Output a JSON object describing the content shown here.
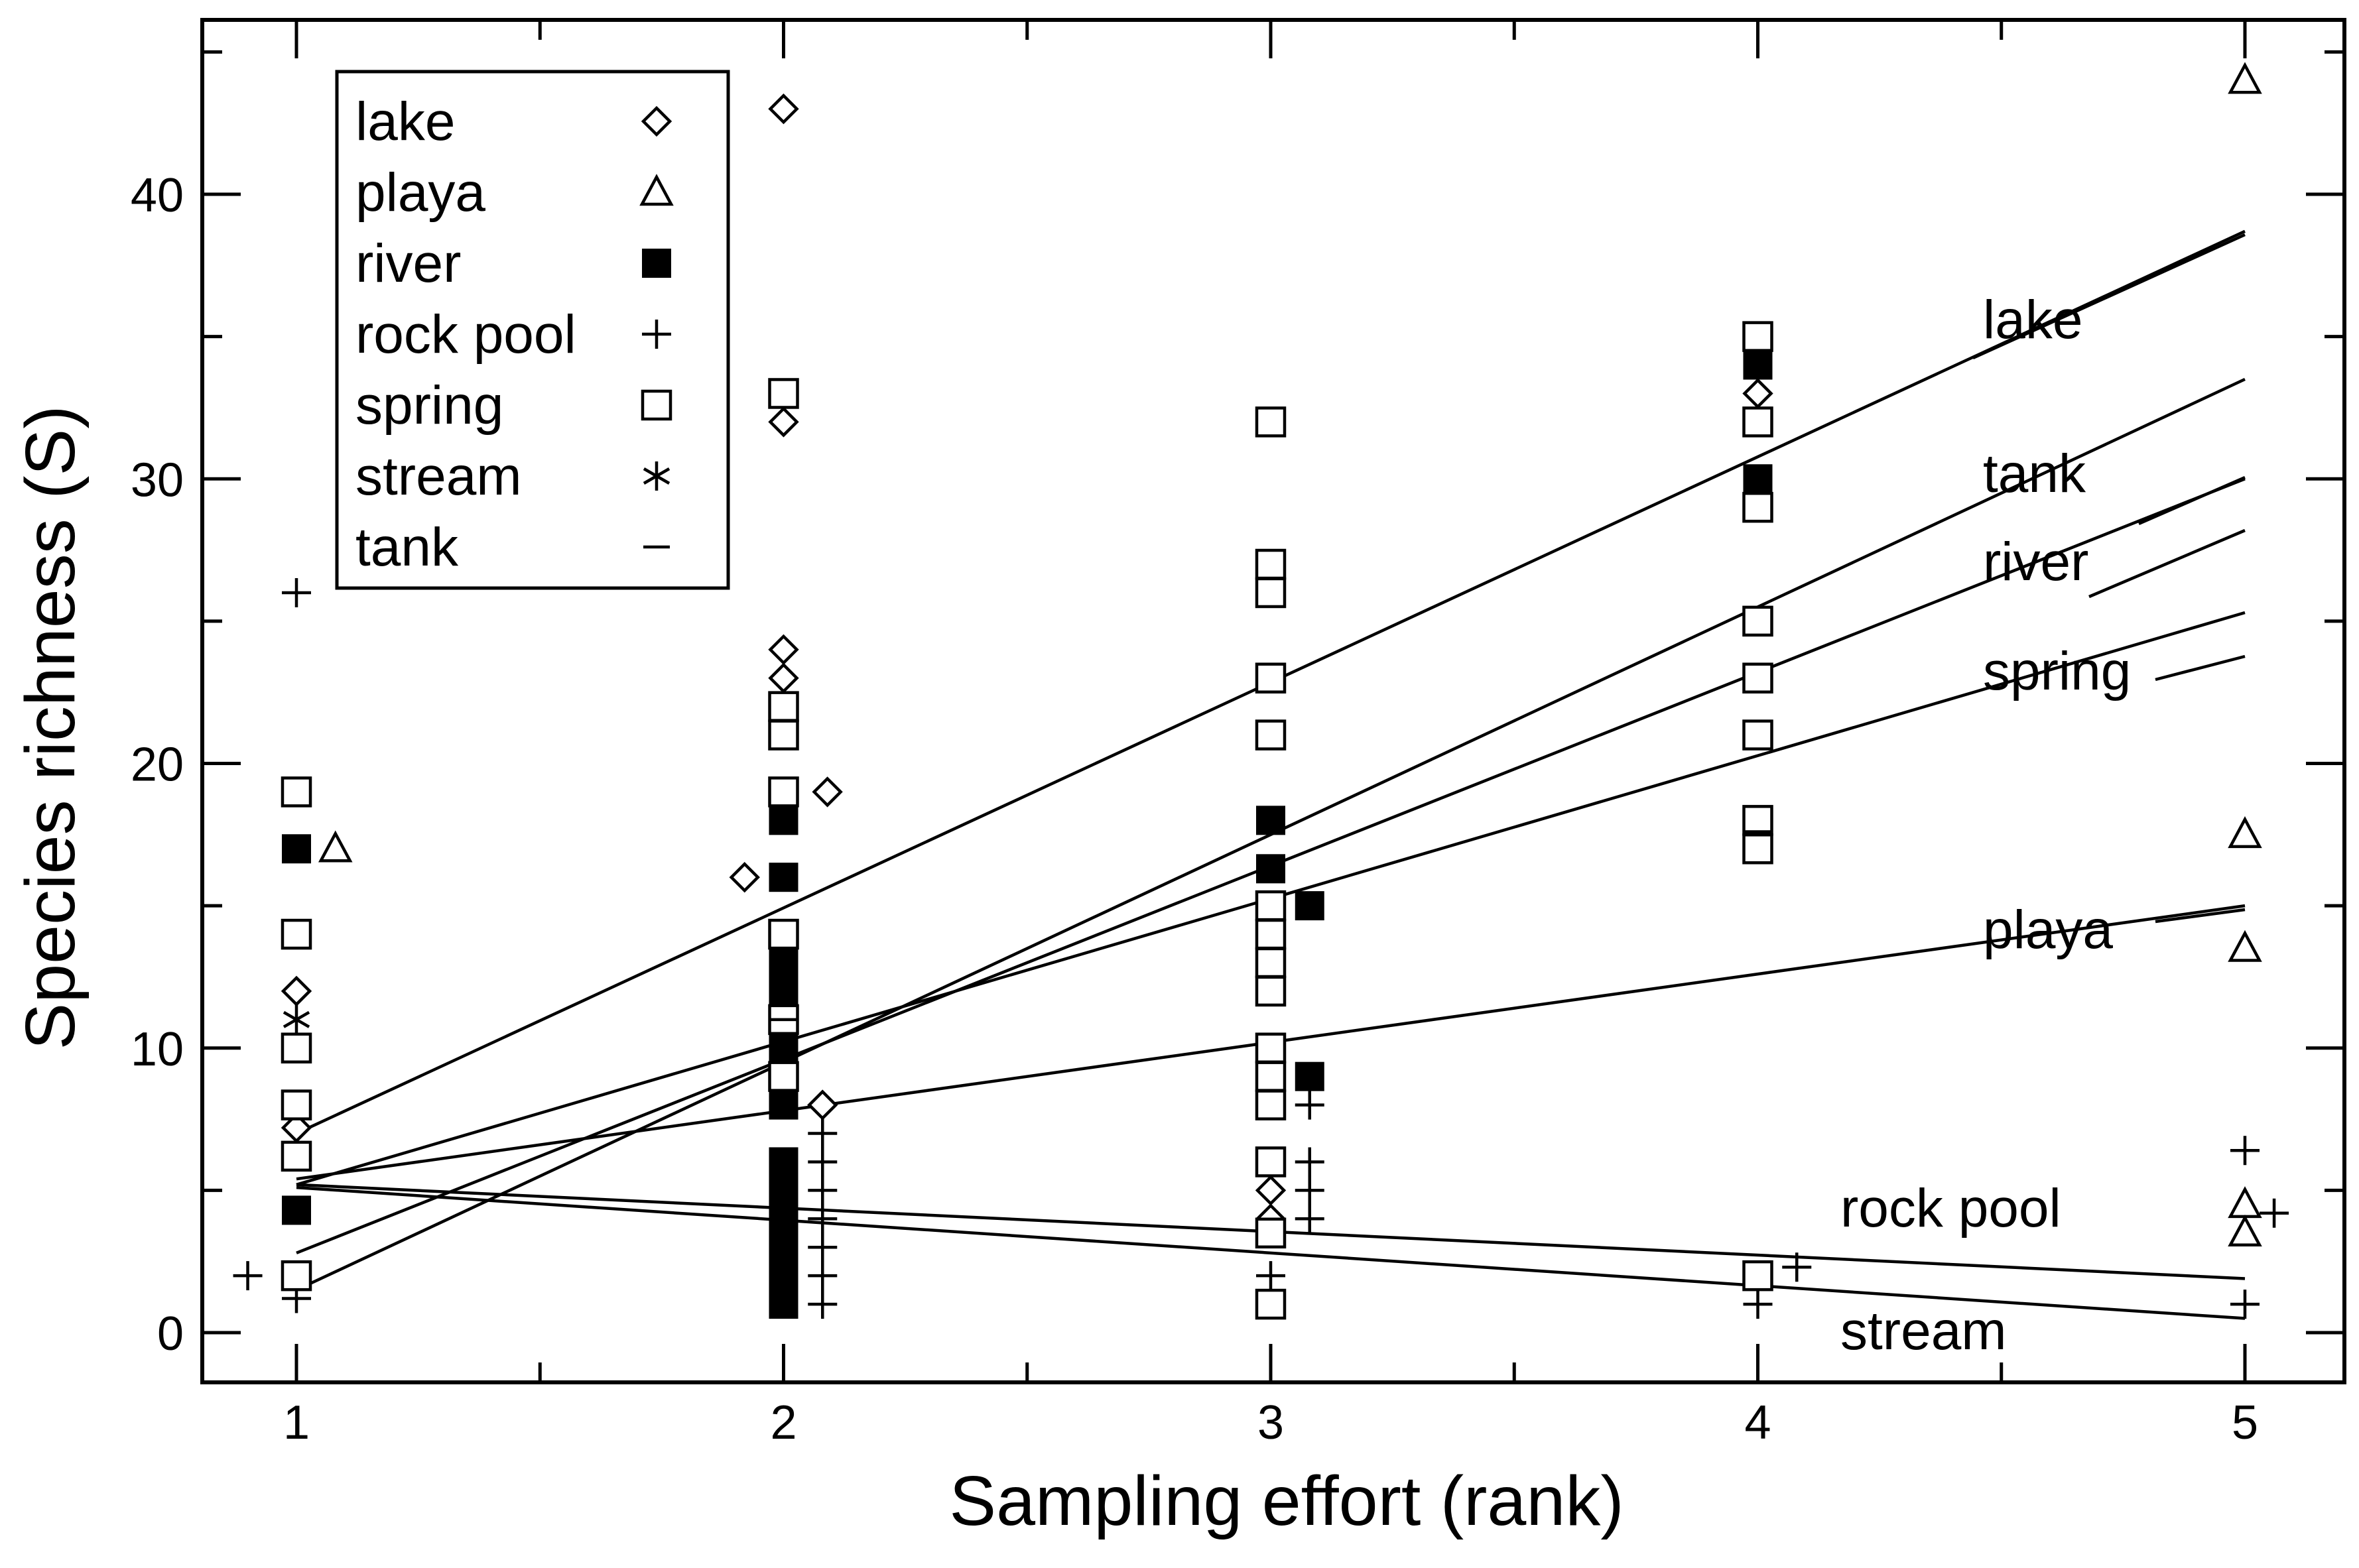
{
  "chart_data": {
    "type": "scatter",
    "title": "",
    "xlabel": "Sampling effort (rank)",
    "ylabel": "Species richness (S)",
    "xlim": [
      0.8,
      5.2
    ],
    "ylim": [
      -1.5,
      46.5
    ],
    "xticks": [
      1,
      2,
      3,
      4,
      5
    ],
    "yticks": [
      0,
      10,
      20,
      30,
      40
    ],
    "grid": false,
    "legend_position": "top-left",
    "legend": [
      {
        "label": "lake",
        "marker": "diamond"
      },
      {
        "label": "playa",
        "marker": "triangle"
      },
      {
        "label": "river",
        "marker": "filled-square"
      },
      {
        "label": "rock pool",
        "marker": "plus"
      },
      {
        "label": "spring",
        "marker": "square"
      },
      {
        "label": "stream",
        "marker": "asterisk"
      },
      {
        "label": "tank",
        "marker": "dash"
      }
    ],
    "series": [
      {
        "name": "lake",
        "marker": "diamond",
        "points": [
          [
            1,
            12
          ],
          [
            1,
            7.2
          ],
          [
            1.92,
            16
          ],
          [
            2,
            43
          ],
          [
            2,
            32
          ],
          [
            2,
            24
          ],
          [
            2,
            23
          ],
          [
            2.09,
            19
          ],
          [
            2.08,
            8
          ],
          [
            3,
            5
          ],
          [
            3,
            4
          ],
          [
            4,
            33
          ]
        ]
      },
      {
        "name": "playa",
        "marker": "triangle",
        "points": [
          [
            1.08,
            17
          ],
          [
            5,
            44
          ],
          [
            5,
            17.5
          ],
          [
            5,
            13.5
          ],
          [
            5,
            4.5
          ],
          [
            5,
            3.5
          ]
        ]
      },
      {
        "name": "river",
        "marker": "filled-square",
        "points": [
          [
            1,
            17
          ],
          [
            1,
            4.3
          ],
          [
            2,
            18
          ],
          [
            2,
            16
          ],
          [
            2,
            13
          ],
          [
            2,
            12
          ],
          [
            2,
            10
          ],
          [
            2,
            8
          ],
          [
            2,
            6
          ],
          [
            2,
            5
          ],
          [
            2,
            4
          ],
          [
            2,
            3
          ],
          [
            2,
            2
          ],
          [
            2,
            1
          ],
          [
            3,
            18
          ],
          [
            3,
            16.3
          ],
          [
            3.08,
            15
          ],
          [
            3.08,
            9
          ],
          [
            4,
            34
          ],
          [
            4,
            30
          ]
        ]
      },
      {
        "name": "rock pool",
        "marker": "plus",
        "points": [
          [
            1,
            26
          ],
          [
            0.9,
            2
          ],
          [
            1,
            1.2
          ],
          [
            2.08,
            7
          ],
          [
            2.08,
            6
          ],
          [
            2.08,
            5
          ],
          [
            2.08,
            4
          ],
          [
            2.08,
            3
          ],
          [
            2.08,
            2
          ],
          [
            2.08,
            1
          ],
          [
            3.08,
            8
          ],
          [
            3.08,
            6
          ],
          [
            3.08,
            5
          ],
          [
            3.08,
            4
          ],
          [
            3,
            2
          ],
          [
            4.08,
            2.3
          ],
          [
            4,
            1
          ],
          [
            5,
            6.4
          ],
          [
            5.06,
            4.2
          ],
          [
            5,
            1
          ]
        ]
      },
      {
        "name": "spring",
        "marker": "square",
        "points": [
          [
            1,
            19
          ],
          [
            1,
            14
          ],
          [
            1,
            10
          ],
          [
            1,
            8
          ],
          [
            1,
            6.2
          ],
          [
            1,
            2
          ],
          [
            2,
            33
          ],
          [
            2,
            22
          ],
          [
            2,
            21
          ],
          [
            2,
            19
          ],
          [
            2,
            14
          ],
          [
            2,
            11
          ],
          [
            2,
            9
          ],
          [
            3,
            32
          ],
          [
            3,
            27
          ],
          [
            3,
            26
          ],
          [
            3,
            23
          ],
          [
            3,
            21
          ],
          [
            3,
            15
          ],
          [
            3,
            14
          ],
          [
            3,
            13
          ],
          [
            3,
            12
          ],
          [
            3,
            10
          ],
          [
            3,
            9
          ],
          [
            3,
            8
          ],
          [
            3,
            6
          ],
          [
            3,
            3.5
          ],
          [
            3,
            1
          ],
          [
            4,
            35
          ],
          [
            4,
            32
          ],
          [
            4,
            29
          ],
          [
            4,
            25
          ],
          [
            4,
            23
          ],
          [
            4,
            21
          ],
          [
            4,
            18
          ],
          [
            4,
            17
          ],
          [
            4,
            2
          ]
        ]
      },
      {
        "name": "stream",
        "marker": "asterisk",
        "points": [
          [
            1,
            11
          ]
        ]
      },
      {
        "name": "tank",
        "marker": "dash",
        "points": [
          [
            4,
            17.6
          ],
          [
            3,
            26.5
          ],
          [
            3,
            9.5
          ],
          [
            2,
            11
          ]
        ]
      }
    ],
    "fit_lines": [
      {
        "name": "lake",
        "label": "lake",
        "from": [
          1,
          7
        ],
        "to": [
          5,
          38.7
        ]
      },
      {
        "name": "tank",
        "label": "tank",
        "from": [
          1,
          1.5
        ],
        "to": [
          5,
          33.5
        ]
      },
      {
        "name": "river",
        "label": "river",
        "from": [
          1,
          2.8
        ],
        "to": [
          5,
          30
        ]
      },
      {
        "name": "spring",
        "label": "spring",
        "from": [
          1,
          5.2
        ],
        "to": [
          5,
          25.3
        ]
      },
      {
        "name": "playa",
        "label": "playa",
        "from": [
          1,
          5.4
        ],
        "to": [
          5,
          15
        ]
      },
      {
        "name": "rock pool",
        "label": "rock pool",
        "from": [
          1,
          5.2
        ],
        "to": [
          5,
          1.9
        ]
      },
      {
        "name": "stream",
        "label": "stream",
        "from": [
          1,
          5.1
        ],
        "to": [
          5,
          0.5
        ]
      }
    ]
  }
}
